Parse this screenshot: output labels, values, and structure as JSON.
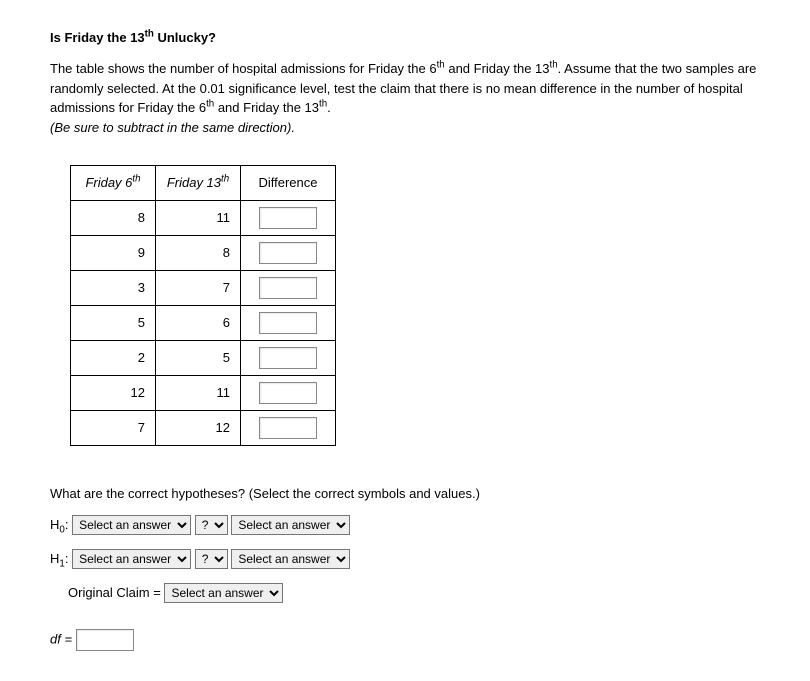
{
  "title_html": "Is Friday the 13<sup>th</sup> Unlucky?",
  "paragraph_html": "The table shows the number of hospital admissions for Friday the 6<sup>th</sup> and Friday the 13<sup>th</sup>. Assume that the two samples are randomly selected. At the 0.01 significance level, test the claim that there is no mean difference in the number of hospital admissions for Friday the 6<sup>th</sup> and Friday the 13<sup>th</sup>.",
  "note": "(Be sure to subtract in the same direction).",
  "table": {
    "headers": {
      "col1_html": "Friday 6<sup>th</sup>",
      "col2_html": "Friday 13<sup>th</sup>",
      "col3": "Difference"
    },
    "rows": [
      {
        "c1": "8",
        "c2": "11"
      },
      {
        "c1": "9",
        "c2": "8"
      },
      {
        "c1": "3",
        "c2": "7"
      },
      {
        "c1": "5",
        "c2": "6"
      },
      {
        "c1": "2",
        "c2": "5"
      },
      {
        "c1": "12",
        "c2": "11"
      },
      {
        "c1": "7",
        "c2": "12"
      }
    ]
  },
  "question": "What are the correct hypotheses? (Select the correct symbols and values.)",
  "hypotheses": {
    "h0_label_html": "H<sub>0</sub>:",
    "h1_label_html": "H<sub>1</sub>:",
    "select_answer": "Select an answer",
    "select_op": "?",
    "original_claim_label": "Original Claim ="
  },
  "df_label": "df ="
}
